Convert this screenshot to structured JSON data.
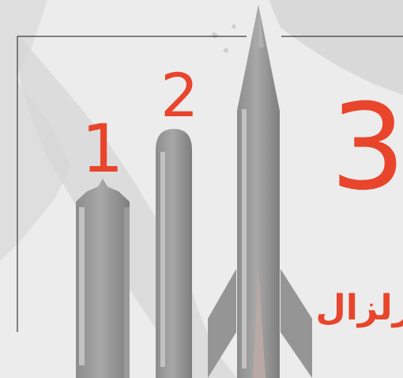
{
  "labels": {
    "one": "1",
    "two": "2",
    "three": "3",
    "arabic": "زلزال"
  },
  "colors": {
    "accent": "#e8452c",
    "background": "#ececec",
    "map_land": "#dcdcdc",
    "frame_line": "#3a3a3a",
    "missile_body": "#9d9d9d"
  }
}
